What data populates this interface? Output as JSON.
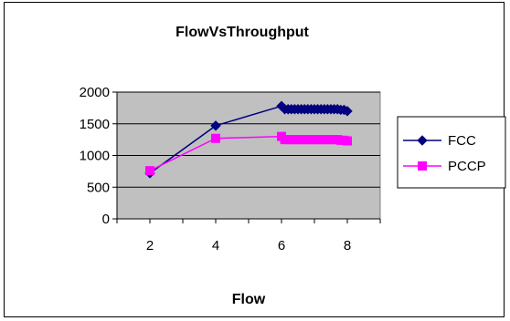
{
  "chart_data": {
    "type": "line",
    "title": "FlowVsThroughput",
    "xlabel": "Flow",
    "ylabel": "",
    "x_ticks": [
      "2",
      "4",
      "6",
      "8"
    ],
    "xlim": [
      1,
      9
    ],
    "ylim": [
      0,
      2000
    ],
    "y_ticks": [
      "0",
      "500",
      "1000",
      "1500",
      "2000"
    ],
    "y_tick_values": [
      0,
      500,
      1000,
      1500,
      2000
    ],
    "grid": true,
    "plot_background": "#c0c0c0",
    "legend_position": "right",
    "series": [
      {
        "name": "FCC",
        "color": "#000080",
        "marker": "diamond",
        "x": [
          2,
          4,
          6,
          6.1,
          6.2,
          6.3,
          6.4,
          6.5,
          6.6,
          6.7,
          6.8,
          6.9,
          7.0,
          7.1,
          7.2,
          7.3,
          7.4,
          7.5,
          7.6,
          7.7,
          7.8,
          7.9,
          8.0
        ],
        "y": [
          720,
          1470,
          1780,
          1730,
          1730,
          1730,
          1730,
          1730,
          1730,
          1730,
          1730,
          1730,
          1730,
          1730,
          1730,
          1730,
          1730,
          1730,
          1730,
          1730,
          1720,
          1720,
          1700
        ]
      },
      {
        "name": "PCCP",
        "color": "#ff00ff",
        "marker": "square",
        "x": [
          2,
          4,
          6,
          6.1,
          6.2,
          6.3,
          6.4,
          6.5,
          6.6,
          6.7,
          6.8,
          6.9,
          7.0,
          7.1,
          7.2,
          7.3,
          7.4,
          7.5,
          7.6,
          7.7,
          7.8,
          7.9,
          8.0
        ],
        "y": [
          760,
          1270,
          1300,
          1250,
          1250,
          1250,
          1250,
          1250,
          1250,
          1250,
          1250,
          1250,
          1250,
          1250,
          1250,
          1250,
          1250,
          1250,
          1250,
          1250,
          1240,
          1240,
          1230
        ]
      }
    ]
  }
}
